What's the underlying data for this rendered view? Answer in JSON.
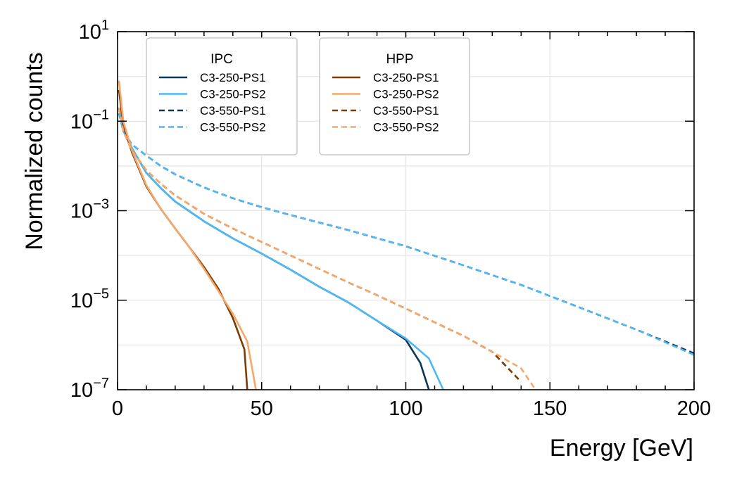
{
  "chart_data": {
    "type": "line",
    "xlabel": "Energy [GeV]",
    "ylabel": "Normalized counts",
    "xlim": [
      0,
      200
    ],
    "ylim": [
      1e-07,
      10
    ],
    "yscale": "log",
    "grid": true,
    "x_ticks": [
      0,
      50,
      100,
      150,
      200
    ],
    "y_ticks": [
      {
        "exp": 1,
        "label_base": "10",
        "label_exp": "1"
      },
      {
        "exp": -1,
        "label_base": "10",
        "label_exp": "−1"
      },
      {
        "exp": -3,
        "label_base": "10",
        "label_exp": "−3"
      },
      {
        "exp": -5,
        "label_base": "10",
        "label_exp": "−5"
      },
      {
        "exp": -7,
        "label_base": "10",
        "label_exp": "−7"
      }
    ],
    "legends": [
      {
        "title": "IPC",
        "placement": "top-left",
        "series": [
          0,
          1,
          2,
          3
        ]
      },
      {
        "title": "HPP",
        "placement": "top-center",
        "series": [
          4,
          5,
          6,
          7
        ]
      }
    ],
    "series": [
      {
        "name": "C3-250-PS1",
        "group": "IPC",
        "color": "#0b3954",
        "dash": "solid",
        "x": [
          0.5,
          2,
          5,
          10,
          15,
          20,
          30,
          40,
          50,
          60,
          70,
          80,
          90,
          100,
          105,
          108
        ],
        "y": [
          0.2,
          0.07,
          0.025,
          0.007,
          0.0032,
          0.0016,
          0.00058,
          0.00024,
          0.00011,
          4.8e-05,
          2e-05,
          9e-06,
          3.5e-06,
          1.3e-06,
          4e-07,
          1e-07
        ]
      },
      {
        "name": "C3-250-PS2",
        "group": "IPC",
        "color": "#4db8f5",
        "dash": "solid",
        "x": [
          0.5,
          2,
          5,
          10,
          15,
          20,
          30,
          40,
          50,
          60,
          70,
          80,
          90,
          100,
          108,
          113
        ],
        "y": [
          0.2,
          0.07,
          0.025,
          0.007,
          0.0032,
          0.0016,
          0.00058,
          0.00024,
          0.00011,
          4.8e-05,
          2e-05,
          9e-06,
          3.5e-06,
          1.4e-06,
          5e-07,
          1e-07
        ]
      },
      {
        "name": "C3-550-PS1",
        "group": "IPC",
        "color": "#0b3954",
        "dash": "dashed",
        "x": [
          0.5,
          2,
          5,
          10,
          15,
          20,
          30,
          40,
          50,
          60,
          80,
          100,
          120,
          140,
          160,
          180,
          200
        ],
        "y": [
          0.15,
          0.06,
          0.03,
          0.017,
          0.01,
          0.0065,
          0.0033,
          0.0019,
          0.0012,
          0.0008,
          0.00037,
          0.00016,
          6e-05,
          2.2e-05,
          7e-06,
          2.2e-06,
          6.5e-07
        ]
      },
      {
        "name": "C3-550-PS2",
        "group": "IPC",
        "color": "#4db8f5",
        "dash": "dashed",
        "x": [
          0.5,
          2,
          5,
          10,
          15,
          20,
          30,
          40,
          50,
          60,
          80,
          100,
          120,
          140,
          160,
          180,
          200
        ],
        "y": [
          0.15,
          0.06,
          0.03,
          0.017,
          0.01,
          0.0065,
          0.0033,
          0.0019,
          0.0012,
          0.0008,
          0.00037,
          0.00016,
          6e-05,
          2.2e-05,
          7e-06,
          2.2e-06,
          6e-07
        ]
      },
      {
        "name": "C3-250-PS1",
        "group": "HPP",
        "color": "#7a3d06",
        "dash": "solid",
        "x": [
          0.5,
          2,
          5,
          10,
          15,
          20,
          25,
          30,
          35,
          40,
          44,
          45
        ],
        "y": [
          0.5,
          0.08,
          0.02,
          0.0035,
          0.0011,
          0.0004,
          0.00015,
          5.5e-05,
          1.8e-05,
          4e-06,
          8e-07,
          1e-07
        ]
      },
      {
        "name": "C3-250-PS2",
        "group": "HPP",
        "color": "#f5a86b",
        "dash": "solid",
        "x": [
          0.5,
          2,
          5,
          10,
          15,
          20,
          25,
          30,
          35,
          40,
          45,
          48
        ],
        "y": [
          0.8,
          0.1,
          0.022,
          0.0037,
          0.0011,
          0.0004,
          0.00015,
          5e-05,
          1.6e-05,
          5e-06,
          1.2e-06,
          1e-07
        ]
      },
      {
        "name": "C3-550-PS1",
        "group": "HPP",
        "color": "#7a3d06",
        "dash": "dashed",
        "x": [
          0.5,
          2,
          5,
          10,
          15,
          20,
          30,
          40,
          50,
          60,
          70,
          80,
          90,
          100,
          110,
          120,
          130,
          140
        ],
        "y": [
          0.2,
          0.06,
          0.022,
          0.008,
          0.004,
          0.0022,
          0.00085,
          0.0004,
          0.0002,
          0.0001,
          5e-05,
          2.5e-05,
          1.3e-05,
          6.5e-06,
          3.2e-06,
          1.6e-06,
          7e-07,
          1.5e-07
        ]
      },
      {
        "name": "C3-550-PS2",
        "group": "HPP",
        "color": "#f5a86b",
        "dash": "dashed",
        "x": [
          0.5,
          2,
          5,
          10,
          15,
          20,
          30,
          40,
          50,
          60,
          70,
          80,
          90,
          100,
          110,
          120,
          130,
          140,
          145
        ],
        "y": [
          0.2,
          0.06,
          0.022,
          0.008,
          0.004,
          0.0022,
          0.00085,
          0.0004,
          0.0002,
          0.0001,
          5e-05,
          2.5e-05,
          1.3e-05,
          6.5e-06,
          3.2e-06,
          1.6e-06,
          7e-07,
          3e-07,
          1e-07
        ]
      }
    ]
  }
}
